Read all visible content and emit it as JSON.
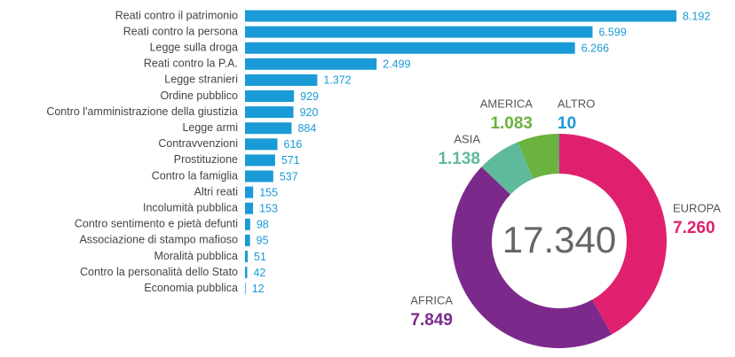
{
  "chart_data": [
    {
      "type": "bar",
      "orientation": "horizontal",
      "color": "#1a9ad6",
      "categories": [
        "Reati contro il patrimonio",
        "Reati contro la persona",
        "Legge sulla droga",
        "Reati contro la P.A.",
        "Legge stranieri",
        "Ordine pubblico",
        "Contro l'amministrazione della giustizia",
        "Legge armi",
        "Contravvenzioni",
        "Prostituzione",
        "Contro la famiglia",
        "Altri reati",
        "Incolumità pubblica",
        "Contro sentimento e pietà defunti",
        "Associazione di stampo mafioso",
        "Moralità pubblica",
        "Contro la personalità dello Stato",
        "Economia pubblica"
      ],
      "values": [
        8192,
        6599,
        6266,
        2499,
        1372,
        929,
        920,
        884,
        616,
        571,
        537,
        155,
        153,
        98,
        95,
        51,
        42,
        12
      ],
      "value_labels": [
        "8.192",
        "6.599",
        "6.266",
        "2.499",
        "1.372",
        "929",
        "920",
        "884",
        "616",
        "571",
        "537",
        "155",
        "153",
        "98",
        "95",
        "51",
        "42",
        "12"
      ]
    },
    {
      "type": "donut",
      "categories": [
        "EUROPA",
        "AFRICA",
        "ASIA",
        "AMERICA",
        "ALTRO"
      ],
      "values": [
        7260,
        7849,
        1138,
        1083,
        10
      ],
      "value_labels": [
        "7.260",
        "7.849",
        "1.138",
        "1.083",
        "10"
      ],
      "colors": [
        "#e0206e",
        "#7b2a8b",
        "#5fb99b",
        "#6ab33f",
        "#1a9ad6"
      ],
      "center_text": "17.340"
    }
  ]
}
